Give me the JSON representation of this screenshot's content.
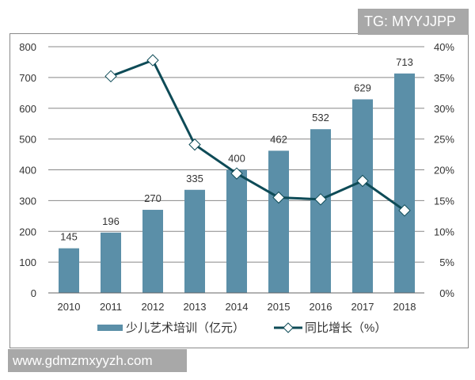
{
  "watermarks": {
    "top": "TG: MYYJJPP",
    "bottom": "www.gdmzmxyyzh.com"
  },
  "chart_data": {
    "type": "bar",
    "categories": [
      "2010",
      "2011",
      "2012",
      "2013",
      "2014",
      "2015",
      "2016",
      "2017",
      "2018"
    ],
    "series": [
      {
        "name": "少儿艺术培训（亿元）",
        "type": "bar",
        "axis": "left",
        "color": "#5b8fa8",
        "values": [
          145,
          196,
          270,
          335,
          400,
          462,
          532,
          629,
          713
        ]
      },
      {
        "name": "同比增长（%）",
        "type": "line",
        "axis": "right",
        "color": "#0e4b57",
        "values": [
          null,
          35.2,
          37.8,
          24.1,
          19.4,
          15.5,
          15.2,
          18.2,
          13.4
        ]
      }
    ],
    "y_left": {
      "min": 0,
      "max": 800,
      "ticks": [
        "0",
        "100",
        "200",
        "300",
        "400",
        "500",
        "600",
        "700",
        "800"
      ]
    },
    "y_right": {
      "min": 0,
      "max": 40,
      "ticks": [
        "0%",
        "5%",
        "10%",
        "15%",
        "20%",
        "25%",
        "30%",
        "35%",
        "40%"
      ]
    },
    "grid": true,
    "legend": "bottom"
  }
}
